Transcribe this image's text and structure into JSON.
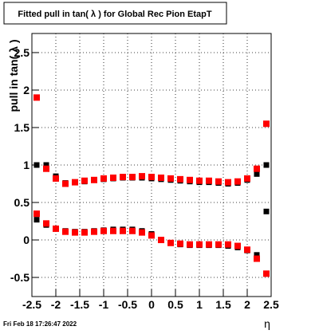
{
  "chart_data": {
    "type": "scatter",
    "title": "Fitted pull in tan( λ ) for Global Rec Pion EtapT",
    "y_label": "pull in tan( λ )",
    "x_label": "η",
    "timestamp": "Fri Feb 18 17:26:47 2022",
    "x": [
      -2.4,
      -2.2,
      -2.0,
      -1.8,
      -1.6,
      -1.4,
      -1.2,
      -1.0,
      -0.8,
      -0.6,
      -0.4,
      -0.2,
      0,
      0.2,
      0.4,
      0.6,
      0.8,
      1.0,
      1.2,
      1.4,
      1.6,
      1.8,
      2.0,
      2.2,
      2.4
    ],
    "series": [
      {
        "color": "#000000",
        "values": [
          1.0,
          1.0,
          0.85,
          0.76,
          0.77,
          0.78,
          0.8,
          0.81,
          0.82,
          0.83,
          0.83,
          0.83,
          0.82,
          0.81,
          0.8,
          0.79,
          0.78,
          0.77,
          0.77,
          0.76,
          0.75,
          0.76,
          0.8,
          0.88,
          1.0
        ]
      },
      {
        "color": "#000000",
        "values": [
          0.27,
          0.2,
          0.15,
          0.12,
          0.11,
          0.11,
          0.12,
          0.13,
          0.14,
          0.14,
          0.14,
          0.12,
          0.08,
          0.0,
          -0.04,
          -0.06,
          -0.07,
          -0.07,
          -0.07,
          -0.07,
          -0.08,
          -0.1,
          -0.14,
          -0.2,
          0.38
        ]
      },
      {
        "color": "#ff0000",
        "values": [
          1.9,
          0.95,
          0.82,
          0.75,
          0.77,
          0.79,
          0.8,
          0.82,
          0.83,
          0.84,
          0.84,
          0.85,
          0.84,
          0.83,
          0.82,
          0.81,
          0.8,
          0.79,
          0.79,
          0.78,
          0.77,
          0.78,
          0.82,
          0.95,
          1.55
        ]
      },
      {
        "color": "#ff0000",
        "values": [
          0.35,
          0.22,
          0.15,
          0.11,
          0.1,
          0.1,
          0.11,
          0.12,
          0.12,
          0.12,
          0.12,
          0.1,
          0.06,
          0.0,
          -0.04,
          -0.05,
          -0.06,
          -0.06,
          -0.06,
          -0.06,
          -0.06,
          -0.08,
          -0.13,
          -0.25,
          -0.45
        ]
      }
    ],
    "xlim": [
      -2.5,
      2.5
    ],
    "xticks": [
      -2.5,
      -2,
      -1.5,
      -1,
      -0.5,
      0,
      0.5,
      1,
      1.5,
      2,
      2.5
    ],
    "ylim": [
      -0.755,
      2.755
    ],
    "yticks": [
      -0.5,
      0,
      0.5,
      1,
      1.5,
      2,
      2.5
    ],
    "grid": true
  }
}
